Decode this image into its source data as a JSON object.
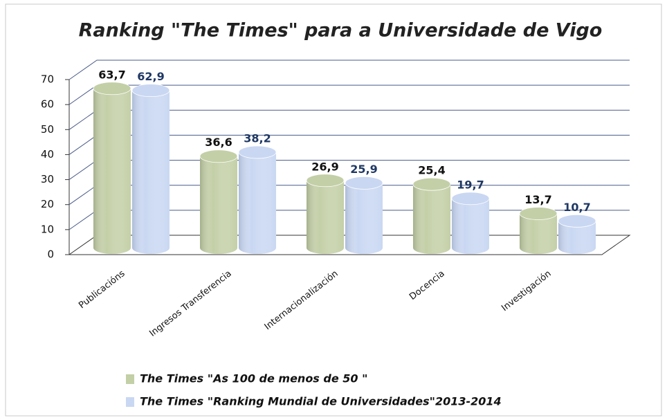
{
  "chart_data": {
    "type": "bar3d",
    "title": "Ranking \"The Times\" para a Universidade de Vigo",
    "categories": [
      "Publicacións",
      "Ingresos Transferencia",
      "Internacionalización",
      "Docencia",
      "Investigación"
    ],
    "series": [
      {
        "name": "The Times \"As 100 de menos de 50 \"",
        "color": "#c3cfa6",
        "values": [
          63.7,
          36.6,
          26.9,
          25.4,
          13.7
        ],
        "value_labels": [
          "63,7",
          "36,6",
          "26,9",
          "25,4",
          "13,7"
        ],
        "label_color": "#111111"
      },
      {
        "name": "The Times \"Ranking Mundial de Universidades\"2013-2014",
        "color": "#c9d7f2",
        "values": [
          62.9,
          38.2,
          25.9,
          19.7,
          10.7
        ],
        "value_labels": [
          "62,9",
          "38,2",
          "25,9",
          "19,7",
          "10,7"
        ],
        "label_color": "#1f3864"
      }
    ],
    "ylim": [
      0,
      70
    ],
    "yticks": [
      0,
      10,
      20,
      30,
      40,
      50,
      60,
      70
    ],
    "grid": true
  }
}
